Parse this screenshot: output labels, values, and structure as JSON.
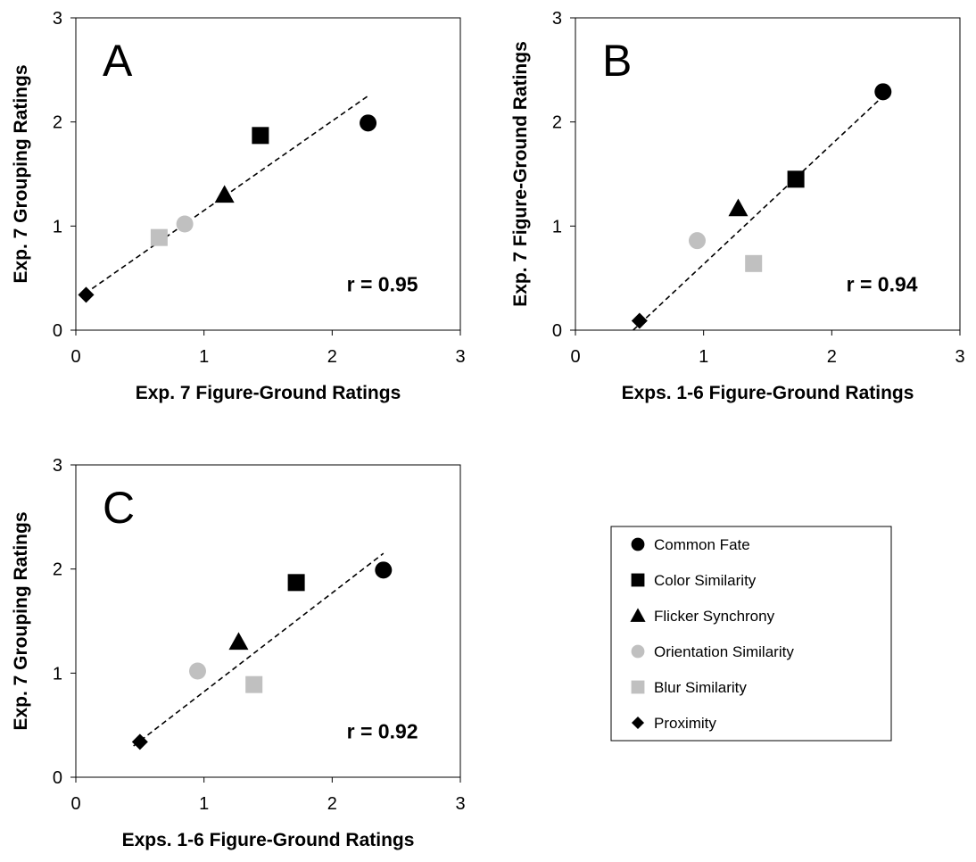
{
  "legend": {
    "items": [
      {
        "label": "Common Fate",
        "shape": "circle",
        "color": "#000000"
      },
      {
        "label": "Color Similarity",
        "shape": "square",
        "color": "#000000"
      },
      {
        "label": "Flicker Synchrony",
        "shape": "triangle",
        "color": "#000000"
      },
      {
        "label": "Orientation Similarity",
        "shape": "circle",
        "color": "#c0c0c0"
      },
      {
        "label": "Blur Similarity",
        "shape": "square",
        "color": "#c0c0c0"
      },
      {
        "label": "Proximity",
        "shape": "diamond",
        "color": "#000000"
      }
    ]
  },
  "chart_data": [
    {
      "type": "scatter",
      "panel_label": "A",
      "annotation": "r = 0.95",
      "xlabel": "Exp. 7 Figure-Ground Ratings",
      "ylabel": "Exp. 7 Grouping Ratings",
      "xlim": [
        0,
        3
      ],
      "ylim": [
        0,
        3
      ],
      "xticks": [
        "0",
        "1",
        "2",
        "3"
      ],
      "yticks": [
        "0",
        "1",
        "2",
        "3"
      ],
      "grid": false,
      "trendline": {
        "style": "dashed",
        "x": [
          0.07,
          2.28
        ],
        "y": [
          0.35,
          2.25
        ]
      },
      "points": [
        {
          "series": "Common Fate",
          "x": 2.28,
          "y": 1.99
        },
        {
          "series": "Color Similarity",
          "x": 1.44,
          "y": 1.87
        },
        {
          "series": "Flicker Synchrony",
          "x": 1.16,
          "y": 1.3
        },
        {
          "series": "Orientation Similarity",
          "x": 0.85,
          "y": 1.02
        },
        {
          "series": "Blur Similarity",
          "x": 0.65,
          "y": 0.89
        },
        {
          "series": "Proximity",
          "x": 0.08,
          "y": 0.34
        }
      ]
    },
    {
      "type": "scatter",
      "panel_label": "B",
      "annotation": "r = 0.94",
      "xlabel": "Exps. 1-6 Figure-Ground Ratings",
      "ylabel": "Exp. 7 Figure-Ground Ratings",
      "xlim": [
        0,
        3
      ],
      "ylim": [
        0,
        3
      ],
      "xticks": [
        "0",
        "1",
        "2",
        "3"
      ],
      "yticks": [
        "0",
        "1",
        "2",
        "3"
      ],
      "grid": false,
      "trendline": {
        "style": "dashed",
        "x": [
          0.45,
          2.42
        ],
        "y": [
          0.0,
          2.27
        ]
      },
      "points": [
        {
          "series": "Common Fate",
          "x": 2.4,
          "y": 2.29
        },
        {
          "series": "Color Similarity",
          "x": 1.72,
          "y": 1.45
        },
        {
          "series": "Flicker Synchrony",
          "x": 1.27,
          "y": 1.17
        },
        {
          "series": "Orientation Similarity",
          "x": 0.95,
          "y": 0.86
        },
        {
          "series": "Blur Similarity",
          "x": 1.39,
          "y": 0.64
        },
        {
          "series": "Proximity",
          "x": 0.5,
          "y": 0.09
        }
      ]
    },
    {
      "type": "scatter",
      "panel_label": "C",
      "annotation": "r = 0.92",
      "xlabel": "Exps. 1-6 Figure-Ground Ratings",
      "ylabel": "Exp. 7 Grouping Ratings",
      "xlim": [
        0,
        3
      ],
      "ylim": [
        0,
        3
      ],
      "xticks": [
        "0",
        "1",
        "2",
        "3"
      ],
      "yticks": [
        "0",
        "1",
        "2",
        "3"
      ],
      "grid": false,
      "trendline": {
        "style": "dashed",
        "x": [
          0.45,
          2.4
        ],
        "y": [
          0.3,
          2.15
        ]
      },
      "points": [
        {
          "series": "Common Fate",
          "x": 2.4,
          "y": 1.99
        },
        {
          "series": "Color Similarity",
          "x": 1.72,
          "y": 1.87
        },
        {
          "series": "Flicker Synchrony",
          "x": 1.27,
          "y": 1.3
        },
        {
          "series": "Orientation Similarity",
          "x": 0.95,
          "y": 1.02
        },
        {
          "series": "Blur Similarity",
          "x": 1.39,
          "y": 0.89
        },
        {
          "series": "Proximity",
          "x": 0.5,
          "y": 0.34
        }
      ]
    }
  ]
}
